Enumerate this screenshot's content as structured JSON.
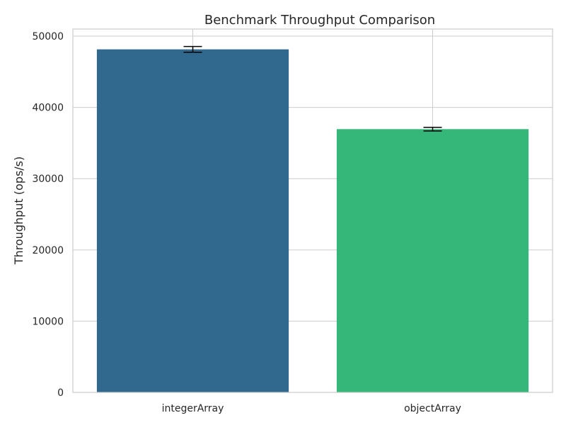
{
  "chart_data": {
    "type": "bar",
    "title": "Benchmark Throughput Comparison",
    "xlabel": "",
    "ylabel": "Throughput (ops/s)",
    "categories": [
      "integerArray",
      "objectArray"
    ],
    "values": [
      48150,
      36950
    ],
    "errors": [
      400,
      250
    ],
    "bar_colors": [
      "#31688e",
      "#35b779"
    ],
    "ylim": [
      0,
      51000
    ],
    "yticks": [
      0,
      10000,
      20000,
      30000,
      40000,
      50000
    ],
    "grid": true,
    "legend": "none"
  }
}
